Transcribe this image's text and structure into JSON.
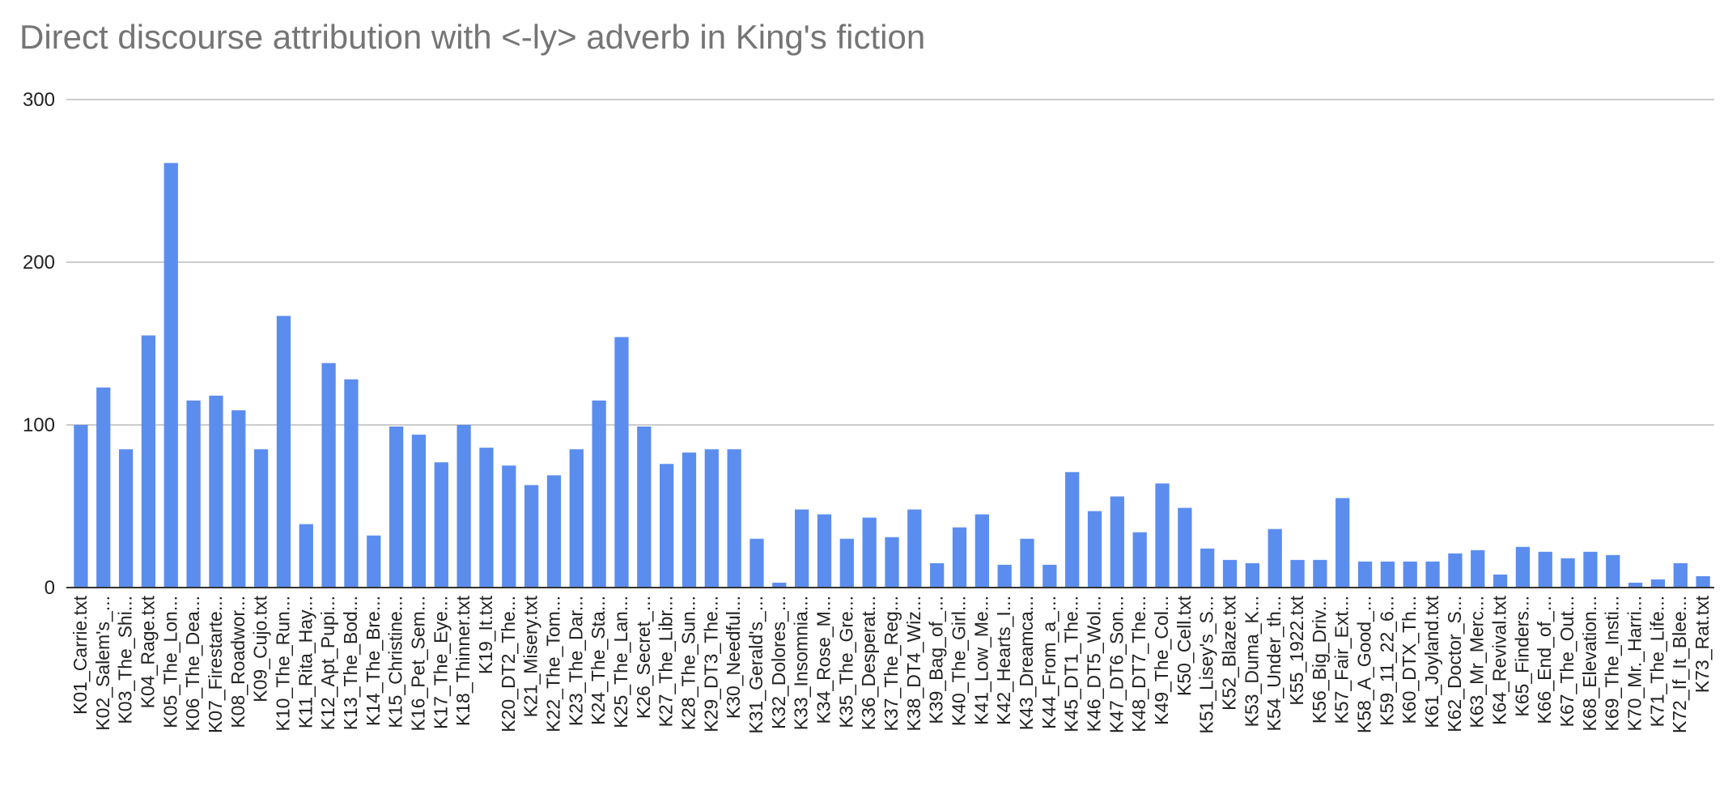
{
  "chart_data": {
    "type": "bar",
    "title": "Direct discourse attribution with <-ly> adverb in King's fiction",
    "xlabel": "",
    "ylabel": "",
    "ylim": [
      0,
      300
    ],
    "yticks": [
      "0",
      "100",
      "200",
      "300"
    ],
    "grid": true,
    "legend": "none",
    "bar_color": "#5b8def",
    "categories": [
      "K01_Carrie.txt",
      "K02_Salem's_...",
      "K03_The_Shi...",
      "K04_Rage.txt",
      "K05_The_Lon...",
      "K06_The_Dea...",
      "K07_Firestarte...",
      "K08_Roadwor...",
      "K09_Cujo.txt",
      "K10_The_Run...",
      "K11_Rita_Hay...",
      "K12_Apt_Pupi...",
      "K13_The_Bod...",
      "K14_The_Bre...",
      "K15_Christine...",
      "K16_Pet_Sem...",
      "K17_The_Eye...",
      "K18_Thinner.txt",
      "K19_It.txt",
      "K20_DT2_The...",
      "K21_Misery.txt",
      "K22_The_Tom...",
      "K23_The_Dar...",
      "K24_The_Sta...",
      "K25_The_Lan...",
      "K26_Secret_...",
      "K27_The_Libr...",
      "K28_The_Sun...",
      "K29_DT3_The...",
      "K30_Needful...",
      "K31_Gerald's_...",
      "K32_Dolores_...",
      "K33_Insomnia...",
      "K34_Rose_M...",
      "K35_The_Gre...",
      "K36_Desperat...",
      "K37_The_Reg...",
      "K38_DT4_Wiz...",
      "K39_Bag_of_...",
      "K40_The_Girl...",
      "K41_Low_Me...",
      "K42_Hearts_I...",
      "K43_Dreamca...",
      "K44_From_a_...",
      "K45_DT1_The...",
      "K46_DT5_Wol...",
      "K47_DT6_Son...",
      "K48_DT7_The...",
      "K49_The_Col...",
      "K50_Cell.txt",
      "K51_Lisey's_S...",
      "K52_Blaze.txt",
      "K53_Duma_K...",
      "K54_Under_th...",
      "K55_1922.txt",
      "K56_Big_Driv...",
      "K57_Fair_Ext...",
      "K58_A_Good_...",
      "K59_11_22_6...",
      "K60_DTX_Th...",
      "K61_Joyland.txt",
      "K62_Doctor_S...",
      "K63_Mr_Merc...",
      "K64_Revival.txt",
      "K65_Finders...",
      "K66_End_of_...",
      "K67_The_Out...",
      "K68_Elevation...",
      "K69_The_Insti...",
      "K70_Mr._Harri...",
      "K71_The_Life...",
      "K72_If_It_Blee...",
      "K73_Rat.txt"
    ],
    "values": [
      100,
      123,
      85,
      155,
      261,
      115,
      118,
      109,
      85,
      167,
      39,
      138,
      128,
      32,
      99,
      94,
      77,
      100,
      86,
      75,
      63,
      69,
      85,
      115,
      154,
      99,
      76,
      83,
      85,
      85,
      30,
      3,
      48,
      45,
      30,
      43,
      31,
      48,
      15,
      37,
      45,
      14,
      30,
      14,
      71,
      47,
      56,
      34,
      64,
      49,
      24,
      17,
      15,
      36,
      17,
      17,
      55,
      16,
      16,
      16,
      16,
      21,
      23,
      8,
      25,
      22,
      18,
      22,
      20,
      3,
      5,
      15,
      7
    ]
  }
}
